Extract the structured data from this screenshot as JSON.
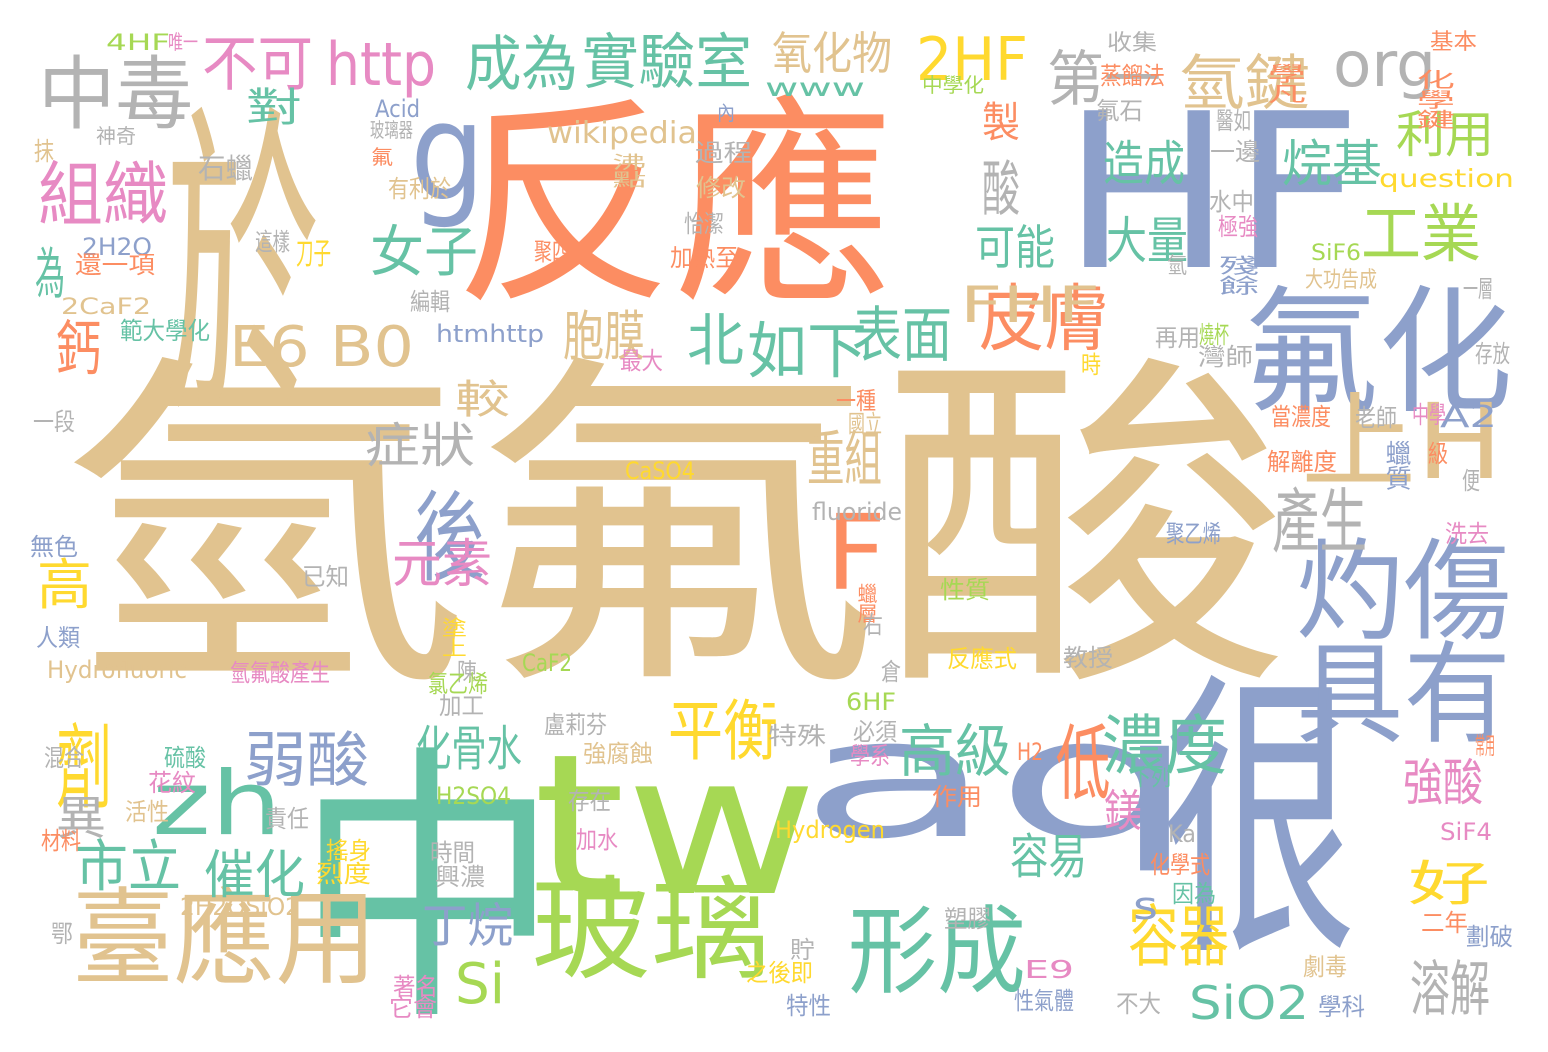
{
  "image": {
    "type": "word-cloud",
    "background": "#ffffff"
  },
  "palette": {
    "tan": "#e1c38f",
    "orange": "#fc8d62",
    "blue": "#8da0cb",
    "green": "#66c2a5",
    "lime": "#a6d854",
    "pink": "#e78ac3",
    "yellow": "#ffd92f",
    "gray": "#b3b3b3"
  },
  "words": [
    {
      "text": "氫氟酸",
      "color": "tan"
    },
    {
      "text": "反應",
      "color": "orange"
    },
    {
      "text": "HF",
      "color": "blue"
    },
    {
      "text": "於",
      "color": "tan"
    },
    {
      "text": "aq",
      "color": "blue"
    },
    {
      "text": "tw",
      "color": "lime"
    },
    {
      "text": "中",
      "color": "green"
    },
    {
      "text": "很",
      "color": "blue"
    },
    {
      "text": "氟化",
      "color": "blue"
    },
    {
      "text": "灼傷",
      "color": "blue"
    },
    {
      "text": "具有",
      "color": "blue"
    },
    {
      "text": "玻璃",
      "color": "lime"
    },
    {
      "text": "臺應用",
      "color": "tan"
    },
    {
      "text": "g",
      "color": "blue"
    },
    {
      "text": "zh",
      "color": "green"
    },
    {
      "text": "中毒",
      "color": "gray"
    },
    {
      "text": "組織",
      "color": "pink"
    },
    {
      "text": "http",
      "color": "pink"
    },
    {
      "text": "org",
      "color": "gray"
    },
    {
      "text": "工業",
      "color": "lime"
    },
    {
      "text": "E6 B0",
      "color": "tan"
    },
    {
      "text": "後",
      "color": "blue"
    },
    {
      "text": "F",
      "color": "orange"
    },
    {
      "text": "上H",
      "color": "tan"
    },
    {
      "text": "形成",
      "color": "green"
    },
    {
      "text": "皮膚",
      "color": "orange"
    },
    {
      "text": "濃度",
      "color": "green"
    },
    {
      "text": "氫鍵",
      "color": "tan"
    },
    {
      "text": "實驗室",
      "color": "green"
    },
    {
      "text": "成為",
      "color": "green"
    },
    {
      "text": "不可",
      "color": "pink"
    },
    {
      "text": "2HF",
      "color": "yellow"
    },
    {
      "text": "第一",
      "color": "gray"
    },
    {
      "text": "利用",
      "color": "lime"
    },
    {
      "text": "女子",
      "color": "green"
    },
    {
      "text": "北",
      "color": "green"
    },
    {
      "text": "如下",
      "color": "green"
    },
    {
      "text": "弱酸",
      "color": "blue"
    },
    {
      "text": "高級",
      "color": "green"
    },
    {
      "text": "平衡",
      "color": "yellow"
    },
    {
      "text": "劑",
      "color": "yellow"
    },
    {
      "text": "市立",
      "color": "green"
    },
    {
      "text": "催化",
      "color": "green"
    },
    {
      "text": "好",
      "color": "yellow"
    },
    {
      "text": "容器",
      "color": "yellow"
    },
    {
      "text": "SiO2",
      "color": "green"
    },
    {
      "text": "溶解",
      "color": "gray"
    },
    {
      "text": "產生",
      "color": "gray"
    },
    {
      "text": "鈣",
      "color": "orange"
    },
    {
      "text": "為",
      "color": "green"
    },
    {
      "text": "氧化物",
      "color": "tan"
    },
    {
      "text": "FHF",
      "color": "tan"
    },
    {
      "text": "低",
      "color": "orange"
    },
    {
      "text": "Si",
      "color": "lime"
    },
    {
      "text": "丁烷",
      "color": "blue"
    },
    {
      "text": "元素",
      "color": "pink"
    },
    {
      "text": "高",
      "color": "yellow"
    },
    {
      "text": "重組",
      "color": "tan"
    },
    {
      "text": "烷基",
      "color": "green"
    },
    {
      "text": "造成",
      "color": "green"
    },
    {
      "text": "大量",
      "color": "green"
    },
    {
      "text": "酸",
      "color": "gray"
    },
    {
      "text": "製",
      "color": "orange"
    },
    {
      "text": "強酸",
      "color": "pink"
    },
    {
      "text": "鎂",
      "color": "pink"
    },
    {
      "text": "容易",
      "color": "green"
    },
    {
      "text": "可能",
      "color": "green"
    },
    {
      "text": "表面",
      "color": "green"
    },
    {
      "text": "胞膜",
      "color": "tan"
    },
    {
      "text": "較",
      "color": "tan"
    },
    {
      "text": "症狀",
      "color": "gray"
    },
    {
      "text": "化骨水",
      "color": "green"
    },
    {
      "text": "異",
      "color": "gray"
    },
    {
      "text": "對",
      "color": "green"
    },
    {
      "text": "s",
      "color": "blue"
    },
    {
      "text": "wikipedia",
      "color": "tan"
    },
    {
      "text": "www",
      "color": "green"
    },
    {
      "text": "question",
      "color": "yellow"
    },
    {
      "text": "A2",
      "color": "blue"
    },
    {
      "text": "E9",
      "color": "pink"
    },
    {
      "text": "4HF",
      "color": "lime"
    },
    {
      "text": "唯一",
      "color": "pink"
    },
    {
      "text": "收集",
      "color": "gray"
    },
    {
      "text": "蒸餾法",
      "color": "orange"
    },
    {
      "text": "基本",
      "color": "orange"
    },
    {
      "text": "中學化",
      "color": "lime"
    },
    {
      "text": "學凡",
      "color": "orange"
    },
    {
      "text": "化學鍵",
      "color": "orange"
    },
    {
      "text": "Acid",
      "color": "blue"
    },
    {
      "text": "內",
      "color": "blue"
    },
    {
      "text": "氟石",
      "color": "gray"
    },
    {
      "text": "玻璃器",
      "color": "gray"
    },
    {
      "text": "神奇",
      "color": "gray"
    },
    {
      "text": "抹",
      "color": "tan"
    },
    {
      "text": "石蠟",
      "color": "gray"
    },
    {
      "text": "過程",
      "color": "gray"
    },
    {
      "text": "醫如",
      "color": "gray"
    },
    {
      "text": "氟",
      "color": "orange"
    },
    {
      "text": "修改",
      "color": "tan"
    },
    {
      "text": "沸點",
      "color": "tan"
    },
    {
      "text": "一邊",
      "color": "gray"
    },
    {
      "text": "有利於",
      "color": "tan"
    },
    {
      "text": "怡潔",
      "color": "gray"
    },
    {
      "text": "水中",
      "color": "gray"
    },
    {
      "text": "極強",
      "color": "pink"
    },
    {
      "text": "2H2O",
      "color": "blue"
    },
    {
      "text": "這樣",
      "color": "gray"
    },
    {
      "text": "還一項",
      "color": "orange"
    },
    {
      "text": "刀子",
      "color": "yellow"
    },
    {
      "text": "聚四",
      "color": "orange"
    },
    {
      "text": "加熱至",
      "color": "orange"
    },
    {
      "text": "殘餘",
      "color": "blue"
    },
    {
      "text": "SiF6",
      "color": "lime"
    },
    {
      "text": "氫",
      "color": "gray"
    },
    {
      "text": "2CaF2",
      "color": "tan"
    },
    {
      "text": "大功告成",
      "color": "tan"
    },
    {
      "text": "一層",
      "color": "gray"
    },
    {
      "text": "範大學化",
      "color": "green"
    },
    {
      "text": "編輯",
      "color": "gray"
    },
    {
      "text": "htmhttp",
      "color": "blue"
    },
    {
      "text": "再用",
      "color": "gray"
    },
    {
      "text": "燒杯",
      "color": "lime"
    },
    {
      "text": "灣師",
      "color": "gray"
    },
    {
      "text": "存放",
      "color": "gray"
    },
    {
      "text": "最大",
      "color": "pink"
    },
    {
      "text": "時",
      "color": "yellow"
    },
    {
      "text": "一段",
      "color": "gray"
    },
    {
      "text": "一種",
      "color": "orange"
    },
    {
      "text": "當濃度",
      "color": "orange"
    },
    {
      "text": "老師",
      "color": "gray"
    },
    {
      "text": "中學",
      "color": "pink"
    },
    {
      "text": "國立",
      "color": "tan"
    },
    {
      "text": "解離度",
      "color": "orange"
    },
    {
      "text": "蠟質",
      "color": "blue"
    },
    {
      "text": "級",
      "color": "orange"
    },
    {
      "text": "CaSO4",
      "color": "yellow"
    },
    {
      "text": "便",
      "color": "gray"
    },
    {
      "text": "fluoride",
      "color": "gray"
    },
    {
      "text": "聚乙烯",
      "color": "blue"
    },
    {
      "text": "無色",
      "color": "blue"
    },
    {
      "text": "洗去",
      "color": "pink"
    },
    {
      "text": "已知",
      "color": "gray"
    },
    {
      "text": "性質",
      "color": "lime"
    },
    {
      "text": "蠟層",
      "color": "orange"
    },
    {
      "text": "人類",
      "color": "blue"
    },
    {
      "text": "右",
      "color": "gray"
    },
    {
      "text": "塗上",
      "color": "yellow"
    },
    {
      "text": "Hydrofluoric",
      "color": "tan"
    },
    {
      "text": "陳",
      "color": "gray"
    },
    {
      "text": "CaF2",
      "color": "lime"
    },
    {
      "text": "氫氟酸產生",
      "color": "pink"
    },
    {
      "text": "倉",
      "color": "gray"
    },
    {
      "text": "反應式",
      "color": "yellow"
    },
    {
      "text": "教授",
      "color": "gray"
    },
    {
      "text": "氯乙烯",
      "color": "lime"
    },
    {
      "text": "加工",
      "color": "gray"
    },
    {
      "text": "6HF",
      "color": "lime"
    },
    {
      "text": "硫酸",
      "color": "green"
    },
    {
      "text": "盧莉芬",
      "color": "gray"
    },
    {
      "text": "必須",
      "color": "gray"
    },
    {
      "text": "混合",
      "color": "gray"
    },
    {
      "text": "強腐蝕",
      "color": "tan"
    },
    {
      "text": "特殊",
      "color": "gray"
    },
    {
      "text": "學系",
      "color": "pink"
    },
    {
      "text": "H2",
      "color": "orange"
    },
    {
      "text": "常用",
      "color": "orange"
    },
    {
      "text": "花紋",
      "color": "pink"
    },
    {
      "text": "下列",
      "color": "green"
    },
    {
      "text": "活性",
      "color": "tan"
    },
    {
      "text": "責任",
      "color": "gray"
    },
    {
      "text": "H2SO4",
      "color": "lime"
    },
    {
      "text": "存在",
      "color": "gray"
    },
    {
      "text": "作用",
      "color": "orange"
    },
    {
      "text": "Hydrogen",
      "color": "yellow"
    },
    {
      "text": "SiF4",
      "color": "pink"
    },
    {
      "text": "加水",
      "color": "pink"
    },
    {
      "text": "Ka",
      "color": "gray"
    },
    {
      "text": "材料",
      "color": "orange"
    },
    {
      "text": "搖身",
      "color": "yellow"
    },
    {
      "text": "時間",
      "color": "gray"
    },
    {
      "text": "烈度",
      "color": "yellow"
    },
    {
      "text": "興濃",
      "color": "gray"
    },
    {
      "text": "化學式",
      "color": "orange"
    },
    {
      "text": "因為",
      "color": "green"
    },
    {
      "text": "2H2OSiO2",
      "color": "tan"
    },
    {
      "text": "二年",
      "color": "orange"
    },
    {
      "text": "塑膠",
      "color": "gray"
    },
    {
      "text": "劃破",
      "color": "blue"
    },
    {
      "text": "鄂",
      "color": "gray"
    },
    {
      "text": "貯",
      "color": "gray"
    },
    {
      "text": "之後即",
      "color": "yellow"
    },
    {
      "text": "劇毒",
      "color": "tan"
    },
    {
      "text": "著名",
      "color": "pink"
    },
    {
      "text": "它會",
      "color": "pink"
    },
    {
      "text": "特性",
      "color": "blue"
    },
    {
      "text": "性氣體",
      "color": "blue"
    },
    {
      "text": "不大",
      "color": "gray"
    },
    {
      "text": "學科",
      "color": "blue"
    }
  ]
}
